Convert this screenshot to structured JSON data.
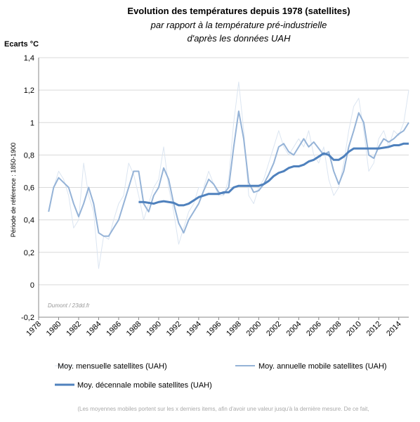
{
  "chart_data": {
    "type": "line",
    "title": "Evolution des températures depuis 1978 (satellites)",
    "subtitle": [
      "par rapport à la température pré-industrielle",
      "d'après les données UAH"
    ],
    "y_label": "Ecarts °C",
    "y_axis_title": "Période de référence : 1850-1900",
    "annotation": "Dumont / 23dd.fr",
    "footnote": "(Les moyennes mobiles portent sur les x derniers items,  afin  d'avoir une valeur  jusqu'à la dernière mesure. De ce fait,",
    "xlim": [
      1978,
      2015
    ],
    "xticks": [
      1978,
      1980,
      1982,
      1984,
      1986,
      1988,
      1990,
      1992,
      1994,
      1996,
      1998,
      2000,
      2002,
      2004,
      2006,
      2008,
      2010,
      2012,
      2014
    ],
    "ylim": [
      -0.2,
      1.4
    ],
    "yticks": [
      {
        "value": -0.2,
        "label": "-0,2"
      },
      0,
      {
        "value": 0.2,
        "label": "0,2"
      },
      {
        "value": 0.4,
        "label": "0,4"
      },
      {
        "value": 0.6,
        "label": "0,6"
      },
      {
        "value": 0.8,
        "label": "0,8"
      },
      1,
      {
        "value": 1.2,
        "label": "1,2"
      },
      {
        "value": 1.4,
        "label": "1,4"
      }
    ],
    "grid": true,
    "x": [
      1979,
      1979.5,
      1980,
      1980.5,
      1981,
      1981.5,
      1982,
      1982.5,
      1983,
      1983.5,
      1984,
      1984.5,
      1985,
      1985.5,
      1986,
      1986.5,
      1987,
      1987.5,
      1988,
      1988.5,
      1989,
      1989.5,
      1990,
      1990.5,
      1991,
      1991.5,
      1992,
      1992.5,
      1993,
      1993.5,
      1994,
      1994.5,
      1995,
      1995.5,
      1996,
      1996.5,
      1997,
      1997.5,
      1998,
      1998.5,
      1999,
      1999.5,
      2000,
      2000.5,
      2001,
      2001.5,
      2002,
      2002.5,
      2003,
      2003.5,
      2004,
      2004.5,
      2005,
      2005.5,
      2006,
      2006.5,
      2007,
      2007.5,
      2008,
      2008.5,
      2009,
      2009.5,
      2010,
      2010.5,
      2011,
      2011.5,
      2012,
      2012.5,
      2013,
      2013.5,
      2014,
      2014.5,
      2015
    ],
    "series": [
      {
        "name": "Moy. mensuelle satellites (UAH)",
        "color": "#dbe5f1",
        "width": 1,
        "values": [
          0.45,
          0.6,
          0.7,
          0.65,
          0.55,
          0.35,
          0.4,
          0.75,
          0.55,
          0.45,
          0.1,
          0.3,
          0.28,
          0.4,
          0.5,
          0.55,
          0.75,
          0.68,
          0.55,
          0.4,
          0.5,
          0.6,
          0.65,
          0.85,
          0.6,
          0.45,
          0.25,
          0.35,
          0.45,
          0.5,
          0.6,
          0.6,
          0.7,
          0.62,
          0.55,
          0.55,
          0.65,
          1.0,
          1.25,
          0.95,
          0.55,
          0.5,
          0.6,
          0.65,
          0.75,
          0.85,
          0.95,
          0.85,
          0.8,
          0.85,
          0.9,
          0.85,
          0.95,
          0.8,
          0.75,
          0.85,
          0.65,
          0.55,
          0.6,
          0.75,
          0.95,
          1.1,
          1.15,
          0.95,
          0.7,
          0.75,
          0.9,
          0.95,
          0.85,
          0.95,
          0.92,
          1.0,
          1.2
        ]
      },
      {
        "name": "Moy.  annuelle mobile satellites (UAH)",
        "color": "#95b3d7",
        "width": 2,
        "values": [
          0.45,
          0.6,
          0.66,
          0.63,
          0.6,
          0.5,
          0.42,
          0.5,
          0.6,
          0.5,
          0.32,
          0.3,
          0.3,
          0.35,
          0.4,
          0.5,
          0.6,
          0.7,
          0.7,
          0.5,
          0.45,
          0.55,
          0.6,
          0.72,
          0.65,
          0.5,
          0.38,
          0.32,
          0.4,
          0.45,
          0.5,
          0.58,
          0.65,
          0.62,
          0.57,
          0.56,
          0.6,
          0.85,
          1.07,
          0.9,
          0.63,
          0.57,
          0.58,
          0.62,
          0.68,
          0.75,
          0.85,
          0.87,
          0.82,
          0.8,
          0.85,
          0.9,
          0.85,
          0.88,
          0.84,
          0.8,
          0.82,
          0.7,
          0.62,
          0.7,
          0.85,
          0.95,
          1.06,
          1.0,
          0.8,
          0.78,
          0.85,
          0.9,
          0.88,
          0.9,
          0.93,
          0.95,
          1.0
        ]
      },
      {
        "name": "Moy.  décennale mobile satellites (UAH)",
        "color": "#4f81bd",
        "width": 3,
        "values": [
          null,
          null,
          null,
          null,
          null,
          null,
          null,
          null,
          null,
          null,
          null,
          null,
          null,
          null,
          null,
          null,
          null,
          null,
          0.51,
          0.51,
          0.505,
          0.5,
          0.51,
          0.515,
          0.51,
          0.505,
          0.49,
          0.49,
          0.5,
          0.52,
          0.54,
          0.55,
          0.56,
          0.56,
          0.56,
          0.57,
          0.57,
          0.6,
          0.61,
          0.61,
          0.61,
          0.61,
          0.61,
          0.62,
          0.64,
          0.67,
          0.69,
          0.7,
          0.72,
          0.73,
          0.73,
          0.74,
          0.76,
          0.77,
          0.79,
          0.81,
          0.8,
          0.77,
          0.77,
          0.79,
          0.82,
          0.84,
          0.84,
          0.84,
          0.84,
          0.84,
          0.84,
          0.845,
          0.85,
          0.86,
          0.86,
          0.87,
          0.87
        ]
      }
    ]
  }
}
